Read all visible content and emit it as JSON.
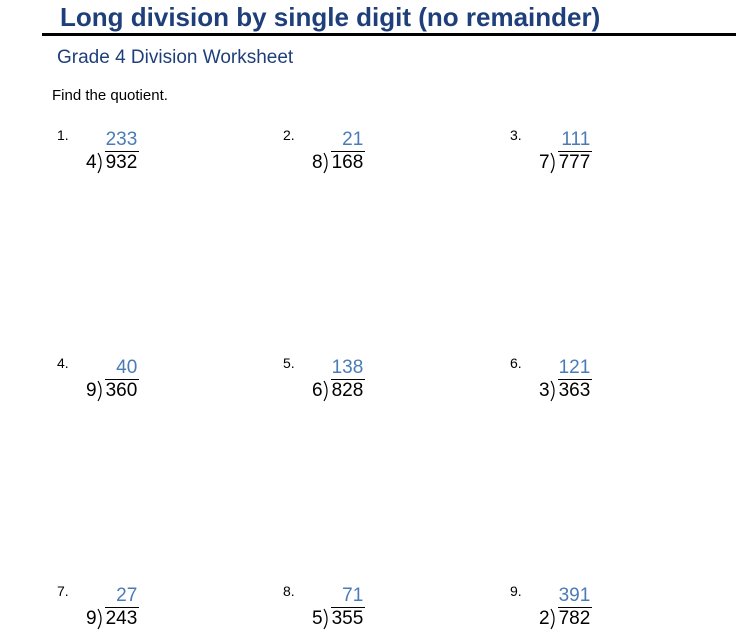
{
  "header": {
    "title": "Long division by single digit (no remainder)",
    "subtitle": "Grade 4 Division Worksheet"
  },
  "instruction": "Find the quotient.",
  "problems": [
    {
      "number": "1.",
      "divisor": "4",
      "dividend": "932",
      "quotient": "233"
    },
    {
      "number": "2.",
      "divisor": "8",
      "dividend": "168",
      "quotient": "21"
    },
    {
      "number": "3.",
      "divisor": "7",
      "dividend": "777",
      "quotient": "111"
    },
    {
      "number": "4.",
      "divisor": "9",
      "dividend": "360",
      "quotient": "40"
    },
    {
      "number": "5.",
      "divisor": "6",
      "dividend": "828",
      "quotient": "138"
    },
    {
      "number": "6.",
      "divisor": "3",
      "dividend": "363",
      "quotient": "121"
    },
    {
      "number": "7.",
      "divisor": "9",
      "dividend": "243",
      "quotient": "27"
    },
    {
      "number": "8.",
      "divisor": "5",
      "dividend": "355",
      "quotient": "71"
    },
    {
      "number": "9.",
      "divisor": "2",
      "dividend": "782",
      "quotient": "391"
    }
  ]
}
